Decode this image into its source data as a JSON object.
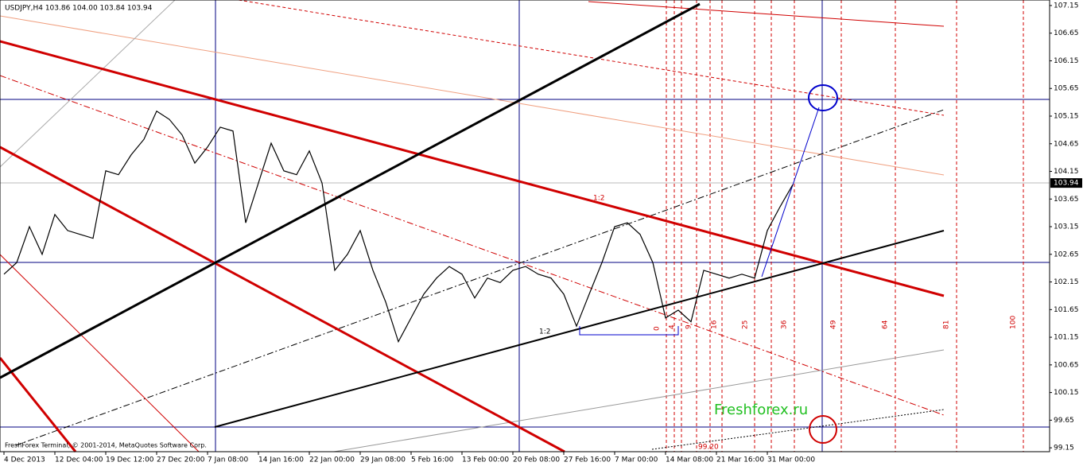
{
  "chart_data": {
    "type": "line",
    "title": "USDJPY,H4  103.86 104.00 103.84 103.94",
    "footer": "FreshForex Terminal, © 2001-2014, MetaQuotes Software Corp.",
    "watermark": "Freshforex.ru",
    "categories": [
      "4 Dec 2013",
      null,
      null,
      null,
      "12 Dec 04:00",
      null,
      null,
      null,
      "19 Dec 12:00",
      null,
      null,
      null,
      "27 Dec 20:00",
      null,
      null,
      null,
      "7 Jan 08:00",
      null,
      null,
      null,
      "14 Jan 16:00",
      null,
      null,
      null,
      "22 Jan 00:00",
      null,
      null,
      null,
      "29 Jan 08:00",
      null,
      null,
      null,
      "5 Feb 16:00",
      null,
      null,
      null,
      "13 Feb 00:00",
      null,
      null,
      null,
      "20 Feb 08:00",
      null,
      null,
      null,
      "27 Feb 16:00",
      null,
      null,
      null,
      "7 Mar 00:00",
      null,
      null,
      null,
      "14 Mar 08:00",
      null,
      null,
      null,
      "21 Mar 16:00",
      null,
      null,
      null,
      "31 Mar 00:00",
      null,
      null
    ],
    "series": [
      {
        "name": "USDJPY,H4",
        "color": "#000000",
        "values": [
          102.29,
          102.5,
          103.15,
          102.65,
          103.37,
          103.08,
          103.01,
          102.94,
          104.16,
          104.09,
          104.45,
          104.73,
          105.24,
          105.09,
          104.81,
          104.3,
          104.59,
          104.95,
          104.88,
          103.22,
          103.94,
          104.66,
          104.16,
          104.09,
          104.52,
          103.94,
          102.36,
          102.65,
          103.08,
          102.36,
          101.79,
          101.07,
          101.5,
          101.93,
          102.22,
          102.43,
          102.29,
          101.86,
          102.22,
          102.14,
          102.36,
          102.43,
          102.29,
          102.22,
          101.93,
          101.35,
          101.93,
          102.5,
          103.15,
          103.22,
          103.01,
          102.5,
          101.5,
          101.64,
          101.43,
          102.36,
          102.29,
          102.22,
          102.29,
          102.22,
          103.08,
          103.51,
          103.91
        ]
      }
    ],
    "current_price": 103.94,
    "ylim": [
      99.08,
      107.25
    ],
    "yticks": [
      99.15,
      99.65,
      100.15,
      100.65,
      101.15,
      101.65,
      102.15,
      102.65,
      103.15,
      103.65,
      104.15,
      104.65,
      105.15,
      105.65,
      106.15,
      106.65,
      107.15
    ],
    "annotations": [
      "1:2",
      "1:2",
      "0",
      "4",
      "9",
      "16",
      "25",
      "36",
      "49",
      "64",
      "81",
      "100",
      "99.20"
    ]
  }
}
